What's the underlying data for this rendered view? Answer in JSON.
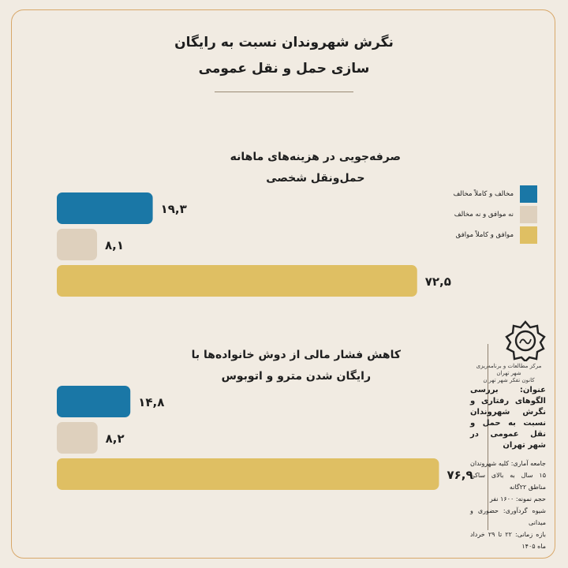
{
  "title_lines": [
    "نگرش شهروندان نسبت به رایگان",
    "سازی حمل و نقل عمومی"
  ],
  "legend": [
    {
      "label": "مخالف و کاملاً مخالف",
      "color": "#1a77a6"
    },
    {
      "label": "نه موافق و نه مخالف",
      "color": "#ded0bd"
    },
    {
      "label": "موافق و کاملاً موافق",
      "color": "#dfbf63"
    }
  ],
  "chart_data": [
    {
      "type": "bar",
      "orientation": "horizontal",
      "title_lines": [
        "صرفه‌جویی در هزینه‌های ماهانه",
        "حمل‌و‌نقل شخصی"
      ],
      "categories": [
        "مخالف و کاملاً مخالف",
        "نه موافق و نه مخالف",
        "موافق و کاملاً موافق"
      ],
      "values": [
        19.3,
        8.1,
        72.5
      ],
      "value_labels": [
        "۱۹,۳",
        "۸,۱",
        "۷۲,۵"
      ],
      "colors": [
        "#1a77a6",
        "#ded0bd",
        "#dfbf63"
      ],
      "xlim": [
        0,
        100
      ]
    },
    {
      "type": "bar",
      "orientation": "horizontal",
      "title_lines": [
        "کاهش فشار مالی از دوش خانواده‌ها با",
        "رایگان شدن مترو و اتوبوس"
      ],
      "categories": [
        "مخالف و کاملاً مخالف",
        "نه موافق و نه مخالف",
        "موافق و کاملاً موافق"
      ],
      "values": [
        14.8,
        8.2,
        76.9
      ],
      "value_labels": [
        "۱۴,۸",
        "۸,۲",
        "۷۶,۹"
      ],
      "colors": [
        "#1a77a6",
        "#ded0bd",
        "#dfbf63"
      ],
      "xlim": [
        0,
        100
      ]
    }
  ],
  "source": {
    "org_lines": [
      "مرکز مطالعات و برنامه‌ریزی شهر تهران",
      "کانون تفکر شهر تهران"
    ],
    "topic": "عنوان: بررسی الگوهای رفتاری و نگرش شهروندان نسبت به حمل و نقل عمومی در شهر تهران",
    "meta": [
      "جامعه آماری: کلیه شهروندان ۱۵ سال به بالای ساکن مناطق ۲۲گانه",
      "حجم نمونه: ۱۶۰۰ نفر",
      "شیوه گردآوری: حضوری و میدانی",
      "بازه زمانی: ۲۲ تا ۲۹ خرداد ماه ۱۴۰۵"
    ]
  }
}
